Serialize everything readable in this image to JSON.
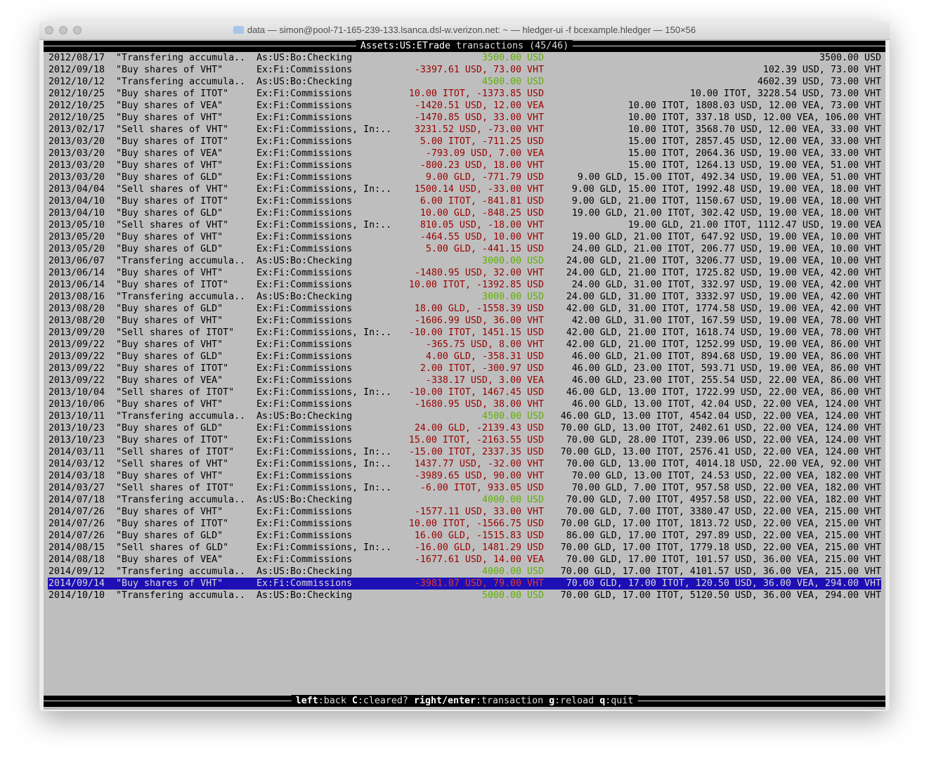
{
  "window": {
    "title": "data — simon@pool-71-165-239-133.lsanca.dsl-w.verizon.net: ~ — hledger-ui -f bcexample.hledger — 150×56"
  },
  "header": {
    "account": "Assets:US:ETrade",
    "label": "transactions",
    "count": "(45/46)"
  },
  "colors": {
    "negative": "#9a0000",
    "positive": "#5fb000",
    "selection": "#1d0fb4",
    "background": "#bebebe"
  },
  "rows": [
    {
      "date": "2012/08/17",
      "desc": "\"Transfering accumula..",
      "account": "As:US:Bo:Checking",
      "amount": "3500.00 USD",
      "sign": "green",
      "balance": "3500.00 USD"
    },
    {
      "date": "2012/09/18",
      "desc": "\"Buy shares of VHT\"",
      "account": "Ex:Fi:Commissions",
      "amount": "-3397.61 USD, 73.00 VHT",
      "sign": "red",
      "balance": "102.39 USD, 73.00 VHT"
    },
    {
      "date": "2012/10/12",
      "desc": "\"Transfering accumula..",
      "account": "As:US:Bo:Checking",
      "amount": "4500.00 USD",
      "sign": "green",
      "balance": "4602.39 USD, 73.00 VHT"
    },
    {
      "date": "2012/10/25",
      "desc": "\"Buy shares of ITOT\"",
      "account": "Ex:Fi:Commissions",
      "amount": "10.00 ITOT, -1373.85 USD",
      "sign": "red",
      "balance": "10.00 ITOT, 3228.54 USD, 73.00 VHT"
    },
    {
      "date": "2012/10/25",
      "desc": "\"Buy shares of VEA\"",
      "account": "Ex:Fi:Commissions",
      "amount": "-1420.51 USD, 12.00 VEA",
      "sign": "red",
      "balance": "10.00 ITOT, 1808.03 USD, 12.00 VEA, 73.00 VHT"
    },
    {
      "date": "2012/10/25",
      "desc": "\"Buy shares of VHT\"",
      "account": "Ex:Fi:Commissions",
      "amount": "-1470.85 USD, 33.00 VHT",
      "sign": "red",
      "balance": "10.00 ITOT, 337.18 USD, 12.00 VEA, 106.00 VHT"
    },
    {
      "date": "2013/02/17",
      "desc": "\"Sell shares of VHT\"",
      "account": "Ex:Fi:Commissions, In:..",
      "amount": "3231.52 USD, -73.00 VHT",
      "sign": "red",
      "balance": "10.00 ITOT, 3568.70 USD, 12.00 VEA, 33.00 VHT"
    },
    {
      "date": "2013/03/20",
      "desc": "\"Buy shares of ITOT\"",
      "account": "Ex:Fi:Commissions",
      "amount": "5.00 ITOT, -711.25 USD",
      "sign": "red",
      "balance": "15.00 ITOT, 2857.45 USD, 12.00 VEA, 33.00 VHT"
    },
    {
      "date": "2013/03/20",
      "desc": "\"Buy shares of VEA\"",
      "account": "Ex:Fi:Commissions",
      "amount": "-793.09 USD, 7.00 VEA",
      "sign": "red",
      "balance": "15.00 ITOT, 2064.36 USD, 19.00 VEA, 33.00 VHT"
    },
    {
      "date": "2013/03/20",
      "desc": "\"Buy shares of VHT\"",
      "account": "Ex:Fi:Commissions",
      "amount": "-800.23 USD, 18.00 VHT",
      "sign": "red",
      "balance": "15.00 ITOT, 1264.13 USD, 19.00 VEA, 51.00 VHT"
    },
    {
      "date": "2013/03/20",
      "desc": "\"Buy shares of GLD\"",
      "account": "Ex:Fi:Commissions",
      "amount": "9.00 GLD, -771.79 USD",
      "sign": "red",
      "balance": "9.00 GLD, 15.00 ITOT, 492.34 USD, 19.00 VEA, 51.00 VHT"
    },
    {
      "date": "2013/04/04",
      "desc": "\"Sell shares of VHT\"",
      "account": "Ex:Fi:Commissions, In:..",
      "amount": "1500.14 USD, -33.00 VHT",
      "sign": "red",
      "balance": "9.00 GLD, 15.00 ITOT, 1992.48 USD, 19.00 VEA, 18.00 VHT"
    },
    {
      "date": "2013/04/10",
      "desc": "\"Buy shares of ITOT\"",
      "account": "Ex:Fi:Commissions",
      "amount": "6.00 ITOT, -841.81 USD",
      "sign": "red",
      "balance": "9.00 GLD, 21.00 ITOT, 1150.67 USD, 19.00 VEA, 18.00 VHT"
    },
    {
      "date": "2013/04/10",
      "desc": "\"Buy shares of GLD\"",
      "account": "Ex:Fi:Commissions",
      "amount": "10.00 GLD, -848.25 USD",
      "sign": "red",
      "balance": "19.00 GLD, 21.00 ITOT, 302.42 USD, 19.00 VEA, 18.00 VHT"
    },
    {
      "date": "2013/05/10",
      "desc": "\"Sell shares of VHT\"",
      "account": "Ex:Fi:Commissions, In:..",
      "amount": "810.05 USD, -18.00 VHT",
      "sign": "red",
      "balance": "19.00 GLD, 21.00 ITOT, 1112.47 USD, 19.00 VEA"
    },
    {
      "date": "2013/05/20",
      "desc": "\"Buy shares of VHT\"",
      "account": "Ex:Fi:Commissions",
      "amount": "-464.55 USD, 10.00 VHT",
      "sign": "red",
      "balance": "19.00 GLD, 21.00 ITOT, 647.92 USD, 19.00 VEA, 10.00 VHT"
    },
    {
      "date": "2013/05/20",
      "desc": "\"Buy shares of GLD\"",
      "account": "Ex:Fi:Commissions",
      "amount": "5.00 GLD, -441.15 USD",
      "sign": "red",
      "balance": "24.00 GLD, 21.00 ITOT, 206.77 USD, 19.00 VEA, 10.00 VHT"
    },
    {
      "date": "2013/06/07",
      "desc": "\"Transfering accumula..",
      "account": "As:US:Bo:Checking",
      "amount": "3000.00 USD",
      "sign": "green",
      "balance": "24.00 GLD, 21.00 ITOT, 3206.77 USD, 19.00 VEA, 10.00 VHT"
    },
    {
      "date": "2013/06/14",
      "desc": "\"Buy shares of VHT\"",
      "account": "Ex:Fi:Commissions",
      "amount": "-1480.95 USD, 32.00 VHT",
      "sign": "red",
      "balance": "24.00 GLD, 21.00 ITOT, 1725.82 USD, 19.00 VEA, 42.00 VHT"
    },
    {
      "date": "2013/06/14",
      "desc": "\"Buy shares of ITOT\"",
      "account": "Ex:Fi:Commissions",
      "amount": "10.00 ITOT, -1392.85 USD",
      "sign": "red",
      "balance": "24.00 GLD, 31.00 ITOT, 332.97 USD, 19.00 VEA, 42.00 VHT"
    },
    {
      "date": "2013/08/16",
      "desc": "\"Transfering accumula..",
      "account": "As:US:Bo:Checking",
      "amount": "3000.00 USD",
      "sign": "green",
      "balance": "24.00 GLD, 31.00 ITOT, 3332.97 USD, 19.00 VEA, 42.00 VHT"
    },
    {
      "date": "2013/08/20",
      "desc": "\"Buy shares of GLD\"",
      "account": "Ex:Fi:Commissions",
      "amount": "18.00 GLD, -1558.39 USD",
      "sign": "red",
      "balance": "42.00 GLD, 31.00 ITOT, 1774.58 USD, 19.00 VEA, 42.00 VHT"
    },
    {
      "date": "2013/08/20",
      "desc": "\"Buy shares of VHT\"",
      "account": "Ex:Fi:Commissions",
      "amount": "-1606.99 USD, 36.00 VHT",
      "sign": "red",
      "balance": "42.00 GLD, 31.00 ITOT, 167.59 USD, 19.00 VEA, 78.00 VHT"
    },
    {
      "date": "2013/09/20",
      "desc": "\"Sell shares of ITOT\"",
      "account": "Ex:Fi:Commissions, In:..",
      "amount": "-10.00 ITOT, 1451.15 USD",
      "sign": "red",
      "balance": "42.00 GLD, 21.00 ITOT, 1618.74 USD, 19.00 VEA, 78.00 VHT"
    },
    {
      "date": "2013/09/22",
      "desc": "\"Buy shares of VHT\"",
      "account": "Ex:Fi:Commissions",
      "amount": "-365.75 USD, 8.00 VHT",
      "sign": "red",
      "balance": "42.00 GLD, 21.00 ITOT, 1252.99 USD, 19.00 VEA, 86.00 VHT"
    },
    {
      "date": "2013/09/22",
      "desc": "\"Buy shares of GLD\"",
      "account": "Ex:Fi:Commissions",
      "amount": "4.00 GLD, -358.31 USD",
      "sign": "red",
      "balance": "46.00 GLD, 21.00 ITOT, 894.68 USD, 19.00 VEA, 86.00 VHT"
    },
    {
      "date": "2013/09/22",
      "desc": "\"Buy shares of ITOT\"",
      "account": "Ex:Fi:Commissions",
      "amount": "2.00 ITOT, -300.97 USD",
      "sign": "red",
      "balance": "46.00 GLD, 23.00 ITOT, 593.71 USD, 19.00 VEA, 86.00 VHT"
    },
    {
      "date": "2013/09/22",
      "desc": "\"Buy shares of VEA\"",
      "account": "Ex:Fi:Commissions",
      "amount": "-338.17 USD, 3.00 VEA",
      "sign": "red",
      "balance": "46.00 GLD, 23.00 ITOT, 255.54 USD, 22.00 VEA, 86.00 VHT"
    },
    {
      "date": "2013/10/04",
      "desc": "\"Sell shares of ITOT\"",
      "account": "Ex:Fi:Commissions, In:..",
      "amount": "-10.00 ITOT, 1467.45 USD",
      "sign": "red",
      "balance": "46.00 GLD, 13.00 ITOT, 1722.99 USD, 22.00 VEA, 86.00 VHT"
    },
    {
      "date": "2013/10/06",
      "desc": "\"Buy shares of VHT\"",
      "account": "Ex:Fi:Commissions",
      "amount": "-1680.95 USD, 38.00 VHT",
      "sign": "red",
      "balance": "46.00 GLD, 13.00 ITOT, 42.04 USD, 22.00 VEA, 124.00 VHT"
    },
    {
      "date": "2013/10/11",
      "desc": "\"Transfering accumula..",
      "account": "As:US:Bo:Checking",
      "amount": "4500.00 USD",
      "sign": "green",
      "balance": "46.00 GLD, 13.00 ITOT, 4542.04 USD, 22.00 VEA, 124.00 VHT"
    },
    {
      "date": "2013/10/23",
      "desc": "\"Buy shares of GLD\"",
      "account": "Ex:Fi:Commissions",
      "amount": "24.00 GLD, -2139.43 USD",
      "sign": "red",
      "balance": "70.00 GLD, 13.00 ITOT, 2402.61 USD, 22.00 VEA, 124.00 VHT"
    },
    {
      "date": "2013/10/23",
      "desc": "\"Buy shares of ITOT\"",
      "account": "Ex:Fi:Commissions",
      "amount": "15.00 ITOT, -2163.55 USD",
      "sign": "red",
      "balance": "70.00 GLD, 28.00 ITOT, 239.06 USD, 22.00 VEA, 124.00 VHT"
    },
    {
      "date": "2014/03/11",
      "desc": "\"Sell shares of ITOT\"",
      "account": "Ex:Fi:Commissions, In:..",
      "amount": "-15.00 ITOT, 2337.35 USD",
      "sign": "red",
      "balance": "70.00 GLD, 13.00 ITOT, 2576.41 USD, 22.00 VEA, 124.00 VHT"
    },
    {
      "date": "2014/03/12",
      "desc": "\"Sell shares of VHT\"",
      "account": "Ex:Fi:Commissions, In:..",
      "amount": "1437.77 USD, -32.00 VHT",
      "sign": "red",
      "balance": "70.00 GLD, 13.00 ITOT, 4014.18 USD, 22.00 VEA, 92.00 VHT"
    },
    {
      "date": "2014/03/18",
      "desc": "\"Buy shares of VHT\"",
      "account": "Ex:Fi:Commissions",
      "amount": "-3989.65 USD, 90.00 VHT",
      "sign": "red",
      "balance": "70.00 GLD, 13.00 ITOT, 24.53 USD, 22.00 VEA, 182.00 VHT"
    },
    {
      "date": "2014/03/27",
      "desc": "\"Sell shares of ITOT\"",
      "account": "Ex:Fi:Commissions, In:..",
      "amount": "-6.00 ITOT, 933.05 USD",
      "sign": "red",
      "balance": "70.00 GLD, 7.00 ITOT, 957.58 USD, 22.00 VEA, 182.00 VHT"
    },
    {
      "date": "2014/07/18",
      "desc": "\"Transfering accumula..",
      "account": "As:US:Bo:Checking",
      "amount": "4000.00 USD",
      "sign": "green",
      "balance": "70.00 GLD, 7.00 ITOT, 4957.58 USD, 22.00 VEA, 182.00 VHT"
    },
    {
      "date": "2014/07/26",
      "desc": "\"Buy shares of VHT\"",
      "account": "Ex:Fi:Commissions",
      "amount": "-1577.11 USD, 33.00 VHT",
      "sign": "red",
      "balance": "70.00 GLD, 7.00 ITOT, 3380.47 USD, 22.00 VEA, 215.00 VHT"
    },
    {
      "date": "2014/07/26",
      "desc": "\"Buy shares of ITOT\"",
      "account": "Ex:Fi:Commissions",
      "amount": "10.00 ITOT, -1566.75 USD",
      "sign": "red",
      "balance": "70.00 GLD, 17.00 ITOT, 1813.72 USD, 22.00 VEA, 215.00 VHT"
    },
    {
      "date": "2014/07/26",
      "desc": "\"Buy shares of GLD\"",
      "account": "Ex:Fi:Commissions",
      "amount": "16.00 GLD, -1515.83 USD",
      "sign": "red",
      "balance": "86.00 GLD, 17.00 ITOT, 297.89 USD, 22.00 VEA, 215.00 VHT"
    },
    {
      "date": "2014/08/15",
      "desc": "\"Sell shares of GLD\"",
      "account": "Ex:Fi:Commissions, In:..",
      "amount": "-16.00 GLD, 1481.29 USD",
      "sign": "red",
      "balance": "70.00 GLD, 17.00 ITOT, 1779.18 USD, 22.00 VEA, 215.00 VHT"
    },
    {
      "date": "2014/08/18",
      "desc": "\"Buy shares of VEA\"",
      "account": "Ex:Fi:Commissions",
      "amount": "-1677.61 USD, 14.00 VEA",
      "sign": "red",
      "balance": "70.00 GLD, 17.00 ITOT, 101.57 USD, 36.00 VEA, 215.00 VHT"
    },
    {
      "date": "2014/09/12",
      "desc": "\"Transfering accumula..",
      "account": "As:US:Bo:Checking",
      "amount": "4000.00 USD",
      "sign": "green",
      "balance": "70.00 GLD, 17.00 ITOT, 4101.57 USD, 36.00 VEA, 215.00 VHT"
    },
    {
      "date": "2014/09/14",
      "desc": "\"Buy shares of VHT\"",
      "account": "Ex:Fi:Commissions",
      "amount": "-3981.07 USD, 79.00 VHT",
      "sign": "red",
      "balance": "70.00 GLD, 17.00 ITOT, 120.50 USD, 36.00 VEA, 294.00 VHT",
      "selected": true
    },
    {
      "date": "2014/10/10",
      "desc": "\"Transfering accumula..",
      "account": "As:US:Bo:Checking",
      "amount": "5000.00 USD",
      "sign": "green",
      "balance": "70.00 GLD, 17.00 ITOT, 5120.50 USD, 36.00 VEA, 294.00 VHT"
    }
  ],
  "footer": {
    "keys": [
      {
        "key": "left",
        "action": "back"
      },
      {
        "key": "C",
        "action": "cleared?"
      },
      {
        "key": "right/enter",
        "action": "transaction"
      },
      {
        "key": "g",
        "action": "reload"
      },
      {
        "key": "q",
        "action": "quit"
      }
    ]
  }
}
